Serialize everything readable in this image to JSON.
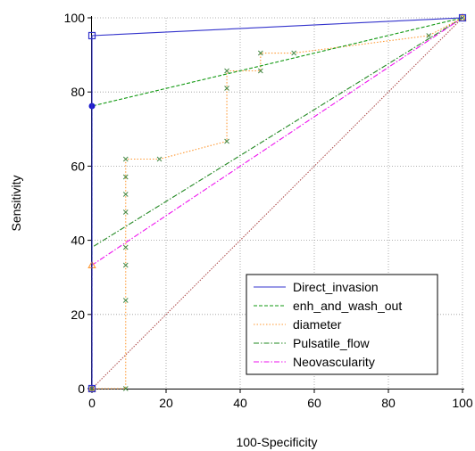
{
  "chart_data": {
    "type": "line",
    "title": "",
    "xlabel": "100-Specificity",
    "ylabel": "Sensitivity",
    "xlim": [
      0,
      100
    ],
    "ylim": [
      0,
      100
    ],
    "xticks": [
      "0",
      "20",
      "40",
      "60",
      "80",
      "100"
    ],
    "yticks": [
      "0",
      "20",
      "40",
      "60",
      "80",
      "100"
    ],
    "grid": true,
    "legend_position": "bottom-right",
    "series": [
      {
        "name": "Direct_invasion",
        "color": "#3333cc",
        "dash": "solid",
        "marker": "square",
        "x": [
          0,
          0,
          100
        ],
        "y": [
          0,
          95.2,
          100
        ]
      },
      {
        "name": "enh_and_wash_out",
        "color": "#119911",
        "dash": "dashed",
        "marker": "dot",
        "x": [
          0,
          0,
          100
        ],
        "y": [
          0,
          76.2,
          100
        ]
      },
      {
        "name": "diameter",
        "color": "#ff9933",
        "dash": "dotted",
        "marker": "x",
        "x": [
          0,
          9.1,
          9.1,
          9.1,
          9.1,
          9.1,
          9.1,
          9.1,
          9.1,
          18.2,
          36.4,
          36.4,
          36.4,
          45.5,
          45.5,
          54.5,
          90.9,
          100
        ],
        "y": [
          0,
          0,
          23.8,
          33.3,
          38.1,
          47.6,
          52.4,
          57.1,
          61.9,
          61.9,
          66.7,
          81.0,
          85.7,
          85.7,
          90.5,
          90.5,
          95.2,
          100
        ]
      },
      {
        "name": "Pulsatile_flow",
        "color": "#228822",
        "dash": "dashdot",
        "marker": "none",
        "x": [
          0,
          0,
          100
        ],
        "y": [
          0,
          38.1,
          100
        ]
      },
      {
        "name": "Neovascularity",
        "color": "#ee11ee",
        "dash": "dashdot",
        "marker": "triangle",
        "x": [
          0,
          0,
          100
        ],
        "y": [
          0,
          33.3,
          100
        ]
      }
    ],
    "reference_line": {
      "color": "#aa4444",
      "x": [
        0,
        100
      ],
      "y": [
        0,
        100
      ]
    }
  }
}
